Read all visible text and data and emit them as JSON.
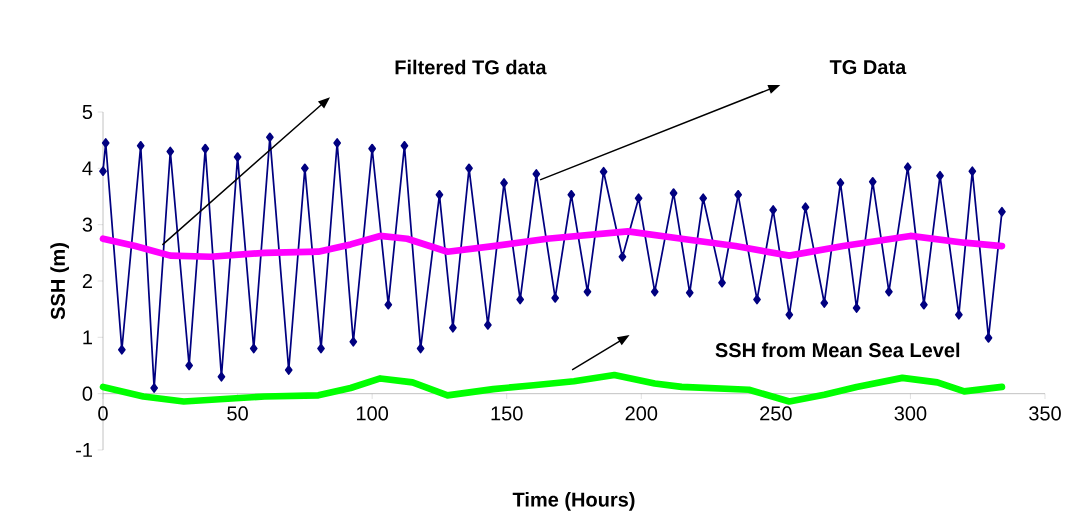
{
  "chart_data": {
    "type": "line",
    "xlabel": "Time (Hours)",
    "ylabel": "SSH (m)",
    "xlim": [
      0,
      350
    ],
    "xticks": [
      0,
      50,
      100,
      150,
      200,
      250,
      300,
      350
    ],
    "ylim": [
      -1,
      5
    ],
    "yticks": [
      -1,
      0,
      1,
      2,
      3,
      4,
      5
    ],
    "grid": false,
    "annotations": [
      "TG Data",
      "Filtered TG data",
      "SSH from Mean Sea Level"
    ],
    "series": [
      {
        "color": "#000080",
        "marker": "diamond",
        "x": [
          0,
          1,
          7,
          14,
          19,
          25,
          32,
          38,
          44,
          50,
          56,
          62,
          69,
          75,
          81,
          87,
          93,
          100,
          106,
          112,
          118,
          125,
          130,
          136,
          143,
          149,
          155,
          161,
          168,
          174,
          180,
          186,
          193,
          199,
          205,
          212,
          218,
          223,
          230,
          236,
          243,
          249,
          255,
          261,
          268,
          274,
          280,
          286,
          292,
          299,
          305,
          311,
          318,
          323,
          329,
          334
        ],
        "values": [
          3.95,
          4.45,
          0.78,
          4.4,
          0.1,
          4.3,
          0.5,
          4.35,
          0.3,
          4.2,
          0.8,
          4.55,
          0.42,
          4.0,
          0.8,
          4.45,
          0.92,
          4.35,
          1.58,
          4.4,
          0.8,
          3.53,
          1.17,
          4.0,
          1.22,
          3.74,
          1.67,
          3.9,
          1.7,
          3.53,
          1.81,
          3.94,
          2.43,
          3.47,
          1.81,
          3.56,
          1.79,
          3.47,
          1.97,
          3.53,
          1.67,
          3.26,
          1.4,
          3.31,
          1.61,
          3.74,
          1.52,
          3.76,
          1.81,
          4.02,
          1.58,
          3.87,
          1.4,
          3.95,
          0.99,
          3.23
        ]
      },
      {
        "color": "#ff00ff",
        "marker": "none",
        "x": [
          0,
          12,
          25,
          40,
          60,
          80,
          92,
          103,
          113,
          128,
          145,
          165,
          195,
          215,
          235,
          255,
          275,
          300,
          320,
          334
        ],
        "values": [
          2.75,
          2.62,
          2.45,
          2.43,
          2.5,
          2.52,
          2.65,
          2.8,
          2.75,
          2.52,
          2.62,
          2.75,
          2.88,
          2.75,
          2.62,
          2.45,
          2.62,
          2.8,
          2.68,
          2.62
        ]
      },
      {
        "color": "#00ff00",
        "marker": "none",
        "x": [
          0,
          15,
          30,
          60,
          80,
          92,
          103,
          115,
          128,
          145,
          160,
          175,
          190,
          205,
          215,
          240,
          255,
          268,
          280,
          297,
          310,
          320,
          334
        ],
        "values": [
          0.12,
          -0.05,
          -0.14,
          -0.05,
          -0.03,
          0.1,
          0.27,
          0.2,
          -0.03,
          0.08,
          0.15,
          0.22,
          0.33,
          0.18,
          0.12,
          0.07,
          -0.14,
          -0.02,
          0.12,
          0.28,
          0.2,
          0.04,
          0.12
        ]
      }
    ]
  }
}
